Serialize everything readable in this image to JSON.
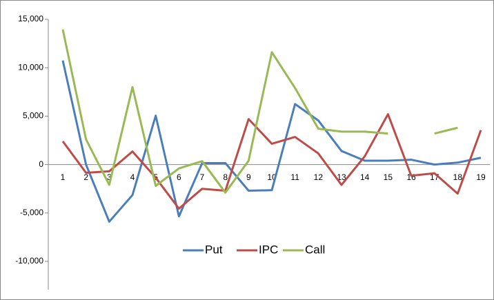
{
  "chart_data": {
    "type": "line",
    "categories": [
      "1",
      "2",
      "3",
      "4",
      "5",
      "6",
      "7",
      "8",
      "9",
      "10",
      "11",
      "12",
      "13",
      "14",
      "15",
      "16",
      "17",
      "18",
      "19"
    ],
    "series": [
      {
        "name": "Put",
        "color": "#4a7ebb",
        "values": [
          10750,
          0,
          -5900,
          -3150,
          5050,
          -5350,
          150,
          150,
          -2700,
          -2650,
          6250,
          4550,
          1400,
          400,
          400,
          500,
          0,
          200,
          700
        ]
      },
      {
        "name": "IPC",
        "color": "#be4b48",
        "values": [
          2400,
          -850,
          -700,
          1350,
          -1350,
          -4550,
          -2500,
          -2700,
          4700,
          2150,
          2850,
          1150,
          -2100,
          850,
          5200,
          -1150,
          -900,
          -3000,
          3550
        ]
      },
      {
        "name": "Call",
        "color": "#98b954",
        "values": [
          13950,
          2600,
          -2100,
          8000,
          -2200,
          -400,
          350,
          -2900,
          400,
          11600,
          7900,
          3700,
          3400,
          3400,
          3200,
          null,
          3200,
          3800,
          null
        ]
      }
    ],
    "ylim": [
      -10000,
      15000
    ],
    "yticks": [
      {
        "value": -10000,
        "label": "-10,000"
      },
      {
        "value": -5000,
        "label": "-5,000"
      },
      0,
      {
        "value": 5000,
        "label": "5,000"
      },
      {
        "value": 10000,
        "label": "10,000"
      },
      {
        "value": 15000,
        "label": "15,000"
      }
    ],
    "legend": "bottom"
  }
}
